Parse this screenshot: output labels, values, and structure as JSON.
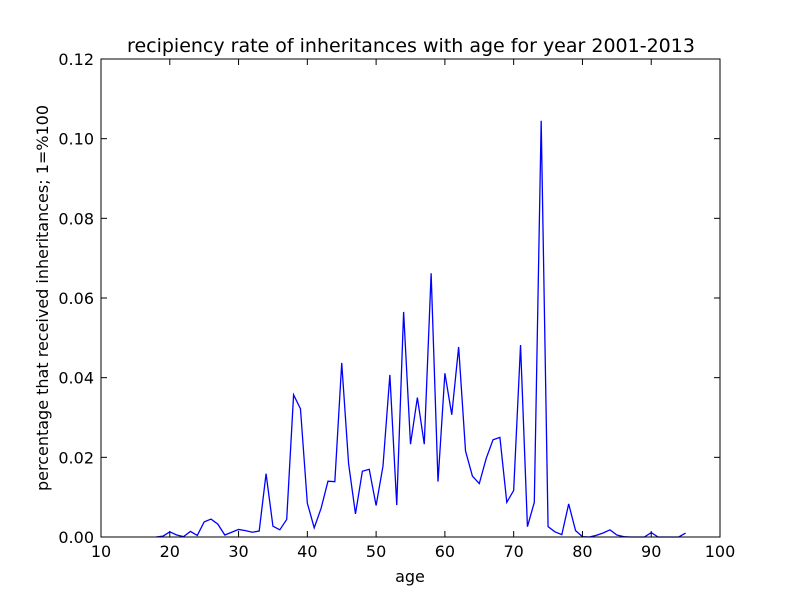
{
  "chart_data": {
    "type": "line",
    "title": "recipiency rate of inheritances with age for year 2001-2013",
    "xlabel": "age",
    "ylabel": "percentage that received inheritances; 1=%100",
    "xlim": [
      10,
      100
    ],
    "ylim": [
      0,
      0.12
    ],
    "xticks": [
      10,
      20,
      30,
      40,
      50,
      60,
      70,
      80,
      90,
      100
    ],
    "yticks": [
      0.0,
      0.02,
      0.04,
      0.06,
      0.08,
      0.1,
      0.12
    ],
    "xtick_labels": [
      "10",
      "20",
      "30",
      "40",
      "50",
      "60",
      "70",
      "80",
      "90",
      "100"
    ],
    "ytick_labels": [
      "0.00",
      "0.02",
      "0.04",
      "0.06",
      "0.08",
      "0.10",
      "0.12"
    ],
    "grid": false,
    "line_color": "#0000ff",
    "series": [
      {
        "x": [
          18,
          19,
          20,
          21,
          22,
          23,
          24,
          25,
          26,
          27,
          28,
          29,
          30,
          31,
          32,
          33,
          34,
          35,
          36,
          37,
          38,
          39,
          40,
          41,
          42,
          43,
          44,
          45,
          46,
          47,
          48,
          49,
          50,
          51,
          52,
          53,
          54,
          55,
          56,
          57,
          58,
          59,
          60,
          61,
          62,
          63,
          64,
          65,
          66,
          67,
          68,
          69,
          70,
          71,
          72,
          73,
          74,
          75,
          76,
          77,
          78,
          79,
          80,
          81,
          82,
          83,
          84,
          85,
          86,
          87,
          88,
          89,
          90,
          91,
          92,
          93,
          94,
          95
        ],
        "y": [
          0.0,
          0.0002,
          0.0013,
          0.0005,
          0.0001,
          0.0014,
          0.0004,
          0.0038,
          0.0045,
          0.0032,
          0.0005,
          0.0012,
          0.0019,
          0.0016,
          0.0012,
          0.0015,
          0.0159,
          0.0027,
          0.0018,
          0.0044,
          0.0357,
          0.0322,
          0.0085,
          0.0023,
          0.0072,
          0.014,
          0.0139,
          0.0437,
          0.0184,
          0.0058,
          0.0165,
          0.017,
          0.0079,
          0.0178,
          0.0407,
          0.008,
          0.0565,
          0.0233,
          0.035,
          0.0233,
          0.0662,
          0.0139,
          0.0411,
          0.0307,
          0.0477,
          0.0216,
          0.0153,
          0.0134,
          0.0197,
          0.0244,
          0.025,
          0.0087,
          0.0117,
          0.0482,
          0.0026,
          0.0087,
          0.1045,
          0.0026,
          0.0013,
          0.0006,
          0.0083,
          0.0016,
          0.0001,
          0.0,
          0.0004,
          0.001,
          0.0018,
          0.0005,
          0.0001,
          0.0,
          0.0,
          0.0,
          0.0011,
          0.0,
          0.0,
          0.0,
          0.0,
          0.001
        ]
      }
    ]
  }
}
